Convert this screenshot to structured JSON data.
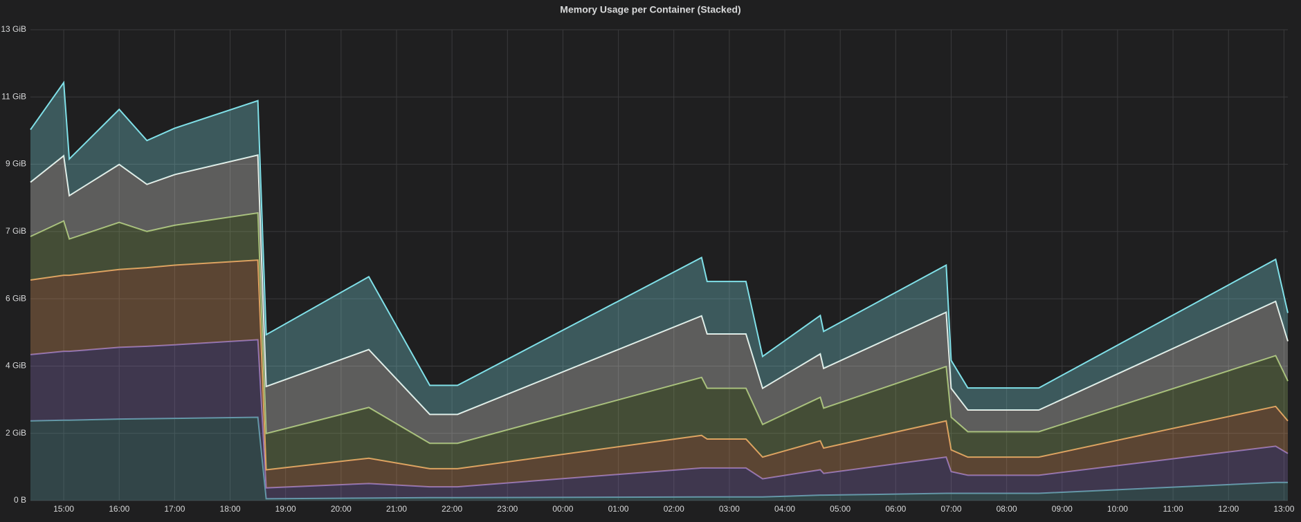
{
  "chart_data": {
    "type": "stacked-area",
    "title": "Memory Usage per Container (Stacked)",
    "x": [
      -0.6,
      0,
      0.1,
      1,
      1.5,
      2,
      3.5,
      3.65,
      5.5,
      6.6,
      7.1,
      11.5,
      11.6,
      12.3,
      12.6,
      13.64,
      13.7,
      15.91,
      16.0,
      16.3,
      17.58,
      21.85,
      22.07
    ],
    "xlim": [
      -0.6,
      22.07
    ],
    "xticks": [
      {
        "value": 0,
        "label": "15:00"
      },
      {
        "value": 1,
        "label": "16:00"
      },
      {
        "value": 2,
        "label": "17:00"
      },
      {
        "value": 3,
        "label": "18:00"
      },
      {
        "value": 4,
        "label": "19:00"
      },
      {
        "value": 5,
        "label": "20:00"
      },
      {
        "value": 6,
        "label": "21:00"
      },
      {
        "value": 7,
        "label": "22:00"
      },
      {
        "value": 8,
        "label": "23:00"
      },
      {
        "value": 9,
        "label": "00:00"
      },
      {
        "value": 10,
        "label": "01:00"
      },
      {
        "value": 11,
        "label": "02:00"
      },
      {
        "value": 12,
        "label": "03:00"
      },
      {
        "value": 13,
        "label": "04:00"
      },
      {
        "value": 14,
        "label": "05:00"
      },
      {
        "value": 15,
        "label": "06:00"
      },
      {
        "value": 16,
        "label": "07:00"
      },
      {
        "value": 17,
        "label": "08:00"
      },
      {
        "value": 18,
        "label": "09:00"
      },
      {
        "value": 19,
        "label": "10:00"
      },
      {
        "value": 20,
        "label": "11:00"
      },
      {
        "value": 21,
        "label": "12:00"
      },
      {
        "value": 22,
        "label": "13:00"
      }
    ],
    "ylim": [
      0,
      13
    ],
    "yticks": [
      {
        "value": 0,
        "label": "0 B"
      },
      {
        "value": 1.857,
        "label": "2 GiB"
      },
      {
        "value": 3.714,
        "label": "4 GiB"
      },
      {
        "value": 5.571,
        "label": "6 GiB"
      },
      {
        "value": 7.429,
        "label": "7 GiB"
      },
      {
        "value": 9.286,
        "label": "9 GiB"
      },
      {
        "value": 11.143,
        "label": "11 GiB"
      },
      {
        "value": 13,
        "label": "13 GiB"
      }
    ],
    "grid": true,
    "stacked": true,
    "series": [
      {
        "color": "#5f9ea6",
        "values": [
          2.2,
          2.22,
          2.22,
          2.25,
          2.26,
          2.27,
          2.3,
          0.05,
          0.07,
          0.08,
          0.08,
          0.1,
          0.1,
          0.1,
          0.1,
          0.15,
          0.15,
          0.2,
          0.2,
          0.2,
          0.2,
          0.5,
          0.5
        ]
      },
      {
        "color": "#8a6fb8",
        "values": [
          1.83,
          1.9,
          1.9,
          1.98,
          2.0,
          2.03,
          2.14,
          0.3,
          0.4,
          0.3,
          0.3,
          0.8,
          0.8,
          0.8,
          0.5,
          0.7,
          0.6,
          1.0,
          0.6,
          0.5,
          0.5,
          1.0,
          0.8
        ]
      },
      {
        "color": "#e8a060",
        "values": [
          2.06,
          2.1,
          2.1,
          2.15,
          2.17,
          2.2,
          2.2,
          0.5,
          0.7,
          0.5,
          0.5,
          0.9,
          0.8,
          0.8,
          0.6,
          0.8,
          0.7,
          1.0,
          0.6,
          0.5,
          0.5,
          1.1,
          0.9
        ]
      },
      {
        "color": "#9cb86a",
        "values": [
          1.2,
          1.5,
          1.0,
          1.3,
          1.0,
          1.1,
          1.3,
          1.0,
          1.4,
          0.7,
          0.7,
          1.6,
          1.4,
          1.4,
          0.9,
          1.2,
          1.1,
          1.5,
          0.9,
          0.7,
          0.7,
          1.4,
          1.1
        ]
      },
      {
        "color": "#f0f0e8",
        "values": [
          1.5,
          1.8,
          1.2,
          1.6,
          1.3,
          1.4,
          1.6,
          1.3,
          1.6,
          0.8,
          0.8,
          1.7,
          1.5,
          1.5,
          1.0,
          1.2,
          1.1,
          1.5,
          0.8,
          0.6,
          0.6,
          1.5,
          1.1
        ]
      },
      {
        "color": "#80e0e8",
        "values": [
          1.45,
          2.02,
          1.01,
          1.52,
          1.21,
          1.28,
          1.5,
          1.43,
          2.01,
          0.8,
          0.8,
          1.61,
          1.45,
          1.45,
          0.88,
          1.06,
          1.02,
          1.3,
          0.77,
          0.61,
          0.61,
          1.16,
          0.78
        ]
      }
    ]
  }
}
